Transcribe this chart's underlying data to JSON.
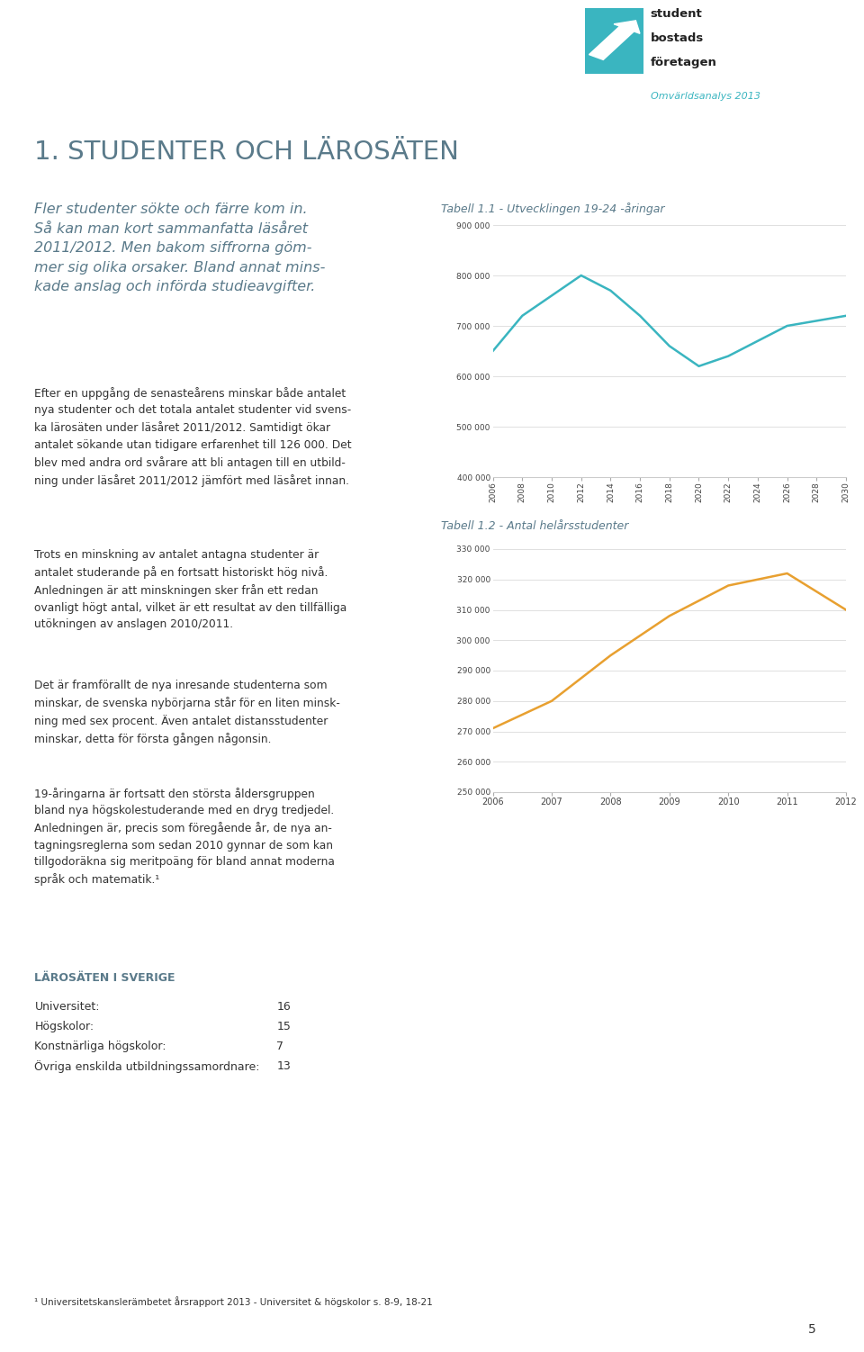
{
  "page_bg": "#ffffff",
  "logo_teal": "#3ab5c0",
  "logo_text_color": "#222222",
  "omvarldsanalys_color": "#3ab5c0",
  "title_color": "#5a7a8a",
  "body_text_color": "#333333",
  "subtitle_color": "#5a7a8a",
  "title_main": "1. STUDENTER OCH LÄROSÄTEN",
  "subtitle_text": "Fler studenter sökte och färre kom in.\nSå kan man kort sammanfatta läsåret\n2011/2012. Men bakom siffrorna göm-\nmer sig olika orsaker. Bland annat mins-\nkade anslag och införda studieavgifter.",
  "body1": "Efter en uppgång de senasteårens minskar både antalet\nnya studenter och det totala antalet studenter vid svens-\nka lärosäten under läsåret 2011/2012. Samtidigt ökar\nantalet sökande utan tidigare erfarenhet till 126 000. Det\nblev med andra ord svårare att bli antagen till en utbild-\nning under läsåret 2011/2012 jämfört med läsåret innan.",
  "body2": "Trots en minskning av antalet antagna studenter är\nantalet studerande på en fortsatt historiskt hög nivå.\nAnledningen är att minskningen sker från ett redan\novanligt högt antal, vilket är ett resultat av den tillfälliga\nutökningen av anslagen 2010/2011.",
  "body3": "Det är framförallt de nya inresande studenterna som\nminskar, de svenska nybörjarna står för en liten minsk-\nning med sex procent. Även antalet distansstudenter\nminskar, detta för första gången någonsin.",
  "body4": "19-åringarna är fortsatt den största åldersgruppen\nbland nya högskolestuderande med en dryg tredjedel.\nAnledningen är, precis som föregående år, de nya an-\ntagningsreglerna som sedan 2010 gynnar de som kan\ntillgodoräkna sig meritpoäng för bland annat moderna\nspråk och matematik.¹",
  "larosaten_heading": "LÄROSÄTEN I SVERIGE",
  "larosaten_items": [
    [
      "Universitet:",
      "16"
    ],
    [
      "Högskolor:",
      "15"
    ],
    [
      "Konstnärliga högskolor:",
      "7"
    ],
    [
      "Övriga enskilda utbildningssamordnare:",
      "13"
    ]
  ],
  "footnote": "¹ Universitetskanslerämbetet årsrapport 2013 - Universitet & högskolor s. 8-9, 18-21",
  "page_number": "5",
  "chart1_title": "Tabell 1.1 - Utvecklingen 19-24 -åringar",
  "chart1_years": [
    2006,
    2008,
    2010,
    2012,
    2014,
    2016,
    2018,
    2020,
    2022,
    2024,
    2026,
    2028,
    2030
  ],
  "chart1_values": [
    650000,
    720000,
    760000,
    800000,
    770000,
    720000,
    660000,
    620000,
    640000,
    670000,
    700000,
    710000,
    720000
  ],
  "chart1_color": "#3ab5c0",
  "chart1_ylim": [
    400000,
    900000
  ],
  "chart1_yticks": [
    400000,
    500000,
    600000,
    700000,
    800000,
    900000
  ],
  "chart1_ytick_labels": [
    "400 000",
    "500 000",
    "600 000",
    "700 000",
    "800 000",
    "900 000"
  ],
  "chart2_title": "Tabell 1.2 - Antal helårsstudenter",
  "chart2_years": [
    2006,
    2007,
    2008,
    2009,
    2010,
    2011,
    2012
  ],
  "chart2_values": [
    271000,
    280000,
    295000,
    308000,
    318000,
    322000,
    310000
  ],
  "chart2_color": "#e8a030",
  "chart2_ylim": [
    250000,
    330000
  ],
  "chart2_yticks": [
    250000,
    260000,
    270000,
    280000,
    290000,
    300000,
    310000,
    320000,
    330000
  ],
  "chart2_ytick_labels": [
    "250 000",
    "260 000",
    "270 000",
    "280 000",
    "290 000",
    "300 000",
    "310 000",
    "320 000",
    "330 000"
  ]
}
